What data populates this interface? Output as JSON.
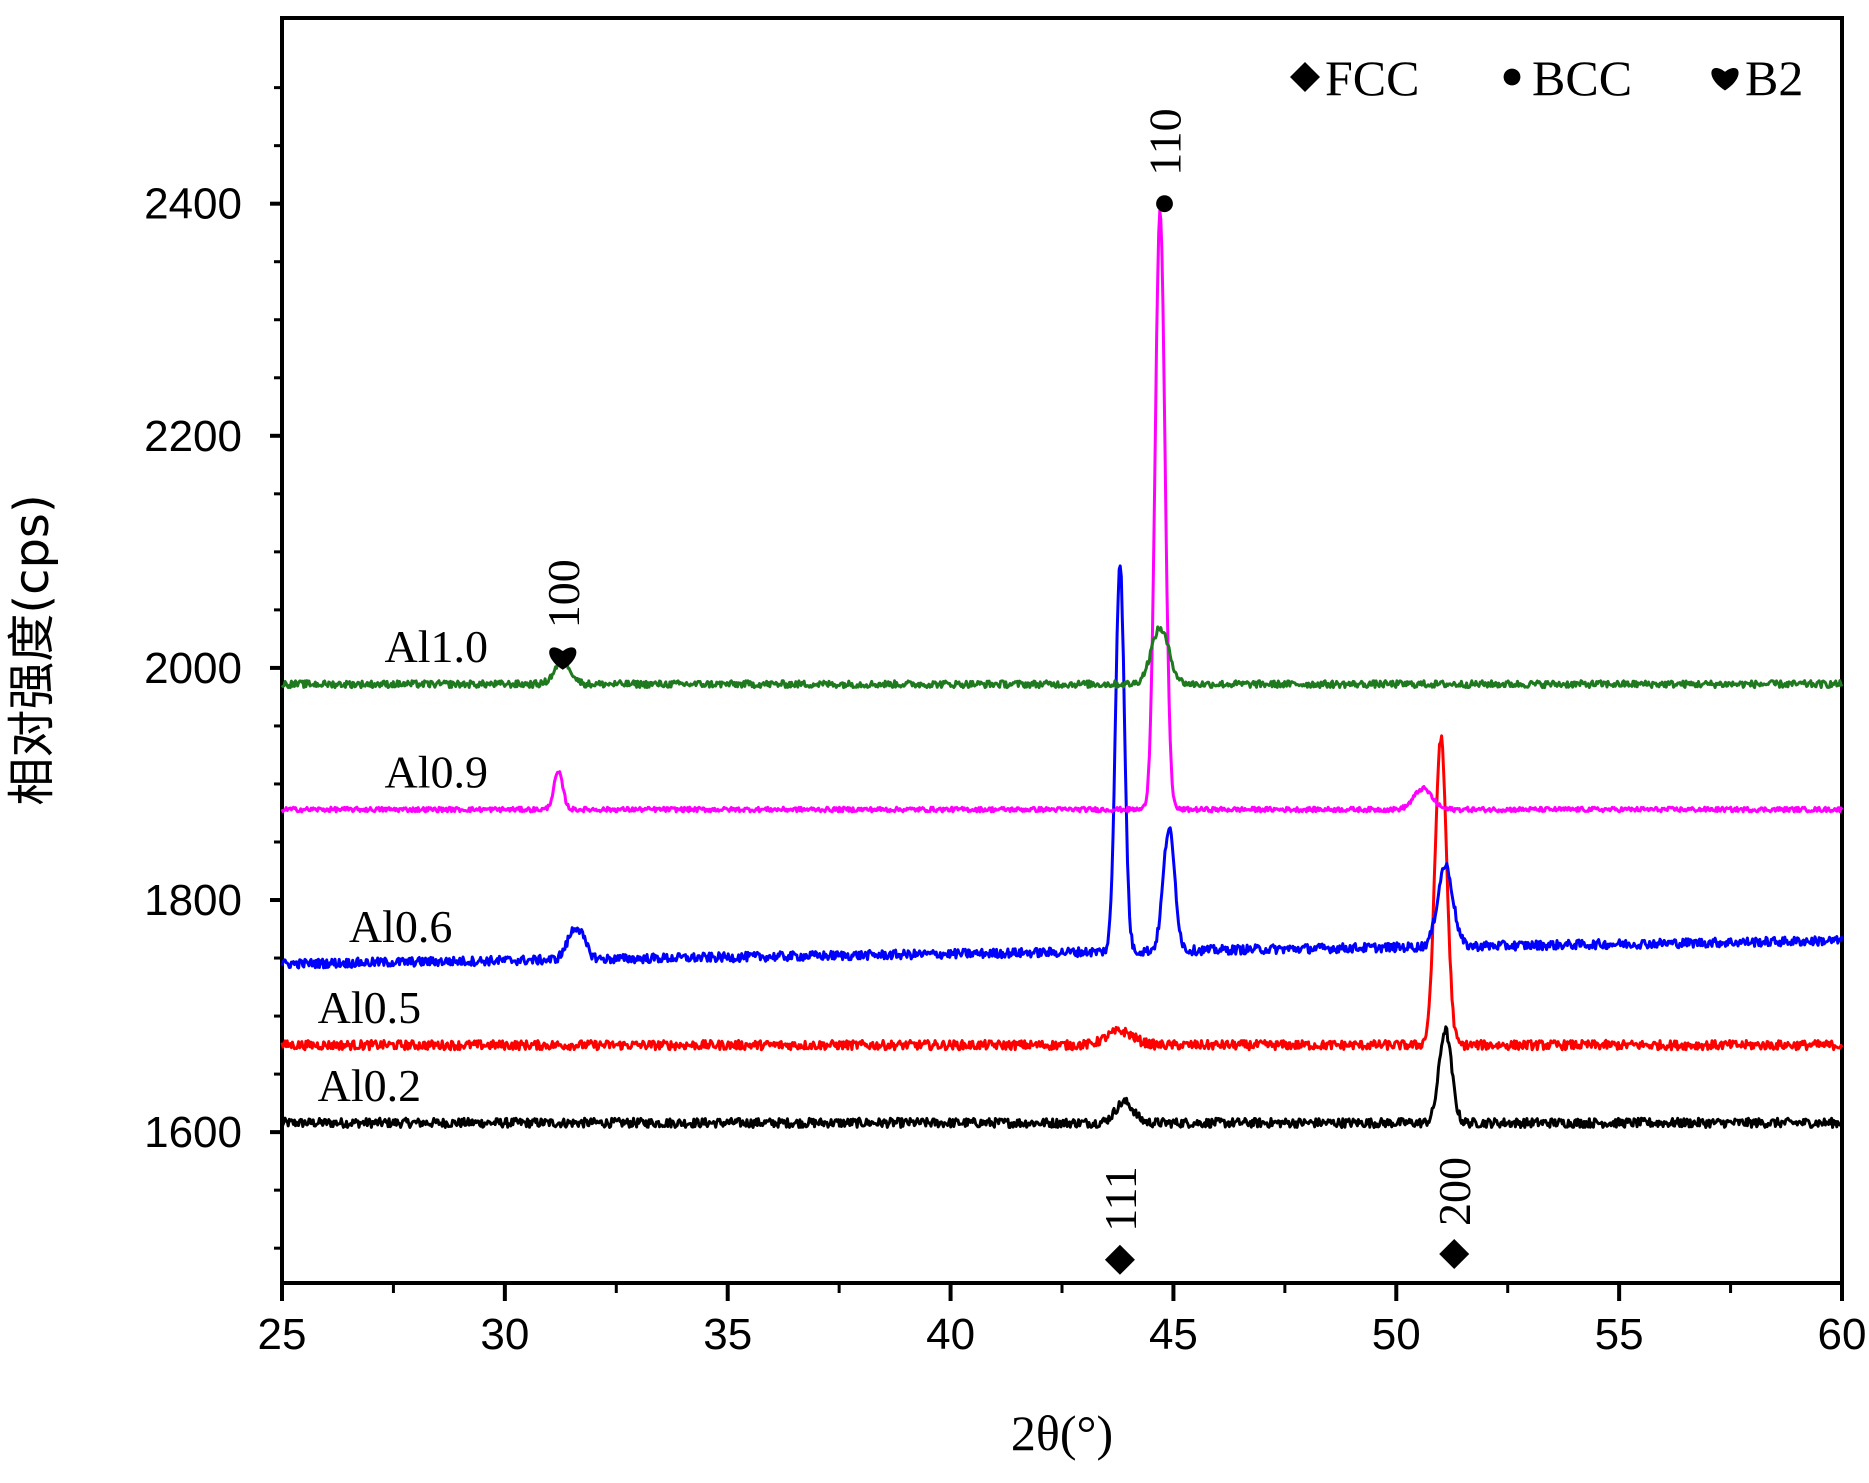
{
  "chart_data": {
    "type": "line",
    "xlabel": "2θ(°)",
    "ylabel": "相对强度(cps)",
    "xlim": [
      25,
      60
    ],
    "ylim": [
      1470,
      2560
    ],
    "x_ticks": [
      "25",
      "30",
      "35",
      "40",
      "45",
      "50",
      "55",
      "60"
    ],
    "y_ticks": [
      "1600",
      "1800",
      "2000",
      "2200",
      "2400"
    ],
    "grid": false,
    "legend": {
      "position": "top-right",
      "entries": [
        {
          "symbol": "diamond",
          "label": "FCC"
        },
        {
          "symbol": "circle",
          "label": "BCC"
        },
        {
          "symbol": "heart",
          "label": "B2"
        }
      ]
    },
    "series": [
      {
        "name": "Al0.2",
        "color": "#000000",
        "baseline": 1608,
        "noise": 4,
        "peaks": [
          {
            "x": 43.9,
            "height": 18,
            "width": 0.2
          },
          {
            "x": 51.1,
            "height": 80,
            "width": 0.14
          }
        ]
      },
      {
        "name": "Al0.5",
        "color": "#ff0000",
        "baseline": 1675,
        "noise": 4,
        "peaks": [
          {
            "x": 43.8,
            "height": 12,
            "width": 0.3
          },
          {
            "x": 51.0,
            "height": 265,
            "width": 0.13
          }
        ]
      },
      {
        "name": "Al0.6",
        "color": "#0000ff",
        "baseline": 1745,
        "baseline_end": 1765,
        "noise": 4,
        "peaks": [
          {
            "x": 31.6,
            "height": 28,
            "width": 0.18
          },
          {
            "x": 43.8,
            "height": 335,
            "width": 0.1
          },
          {
            "x": 44.9,
            "height": 105,
            "width": 0.13
          },
          {
            "x": 51.1,
            "height": 70,
            "width": 0.17
          }
        ]
      },
      {
        "name": "Al0.9",
        "color": "#ff00ff",
        "baseline": 1878,
        "noise": 2,
        "peaks": [
          {
            "x": 31.2,
            "height": 32,
            "width": 0.1
          },
          {
            "x": 44.7,
            "height": 515,
            "width": 0.11
          },
          {
            "x": 50.6,
            "height": 18,
            "width": 0.2
          }
        ]
      },
      {
        "name": "Al1.0",
        "color": "#1f7a1f",
        "baseline": 1986,
        "noise": 3,
        "peaks": [
          {
            "x": 31.3,
            "height": 20,
            "width": 0.18
          },
          {
            "x": 44.7,
            "height": 48,
            "width": 0.2
          }
        ]
      }
    ],
    "annotations": [
      {
        "label": "100",
        "symbol": "heart",
        "x": 31.3,
        "y": 2010
      },
      {
        "label": "110",
        "symbol": "circle",
        "x": 44.8,
        "y": 2400
      },
      {
        "label": "111",
        "symbol": "diamond",
        "x": 43.8,
        "y": 1490
      },
      {
        "label": "200",
        "symbol": "diamond",
        "x": 51.3,
        "y": 1495
      }
    ]
  }
}
